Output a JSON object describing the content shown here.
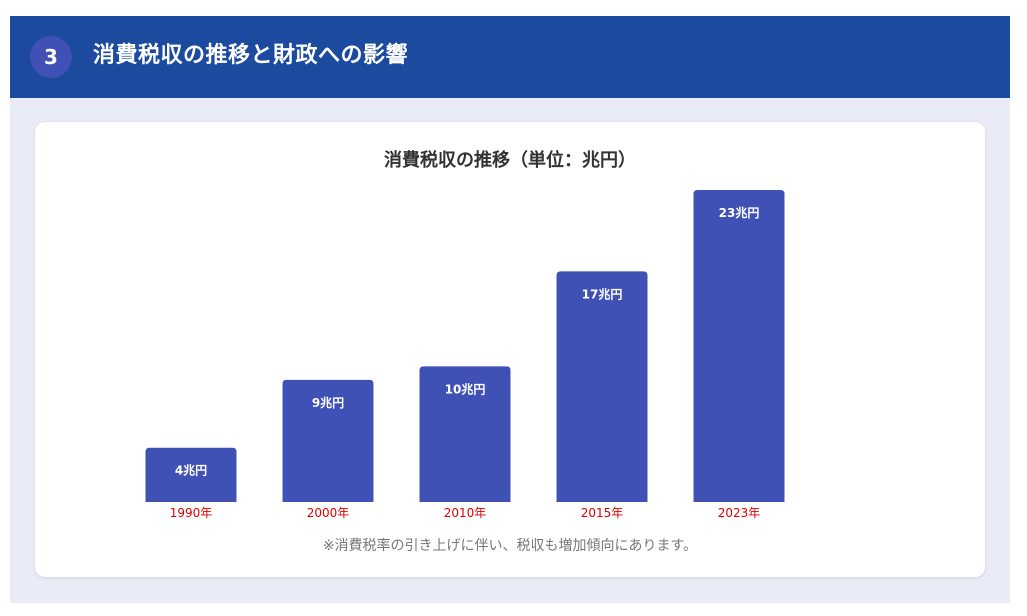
{
  "header": {
    "badge": "3",
    "title": "消費税収の推移と財政への影響"
  },
  "colors": {
    "header_bg": "#1b4a9e",
    "badge_bg": "#3f51b5",
    "bar": "#3f51b5",
    "year_label": "#e00000",
    "note": "#777777"
  },
  "chart_data": {
    "type": "bar",
    "title": "消費税収の推移（単位：兆円）",
    "categories": [
      "1990年",
      "2000年",
      "2010年",
      "2015年",
      "2023年"
    ],
    "values": [
      4,
      9,
      10,
      17,
      23
    ],
    "value_labels": [
      "4兆円",
      "9兆円",
      "10兆円",
      "17兆円",
      "23兆円"
    ],
    "xlabel": "",
    "ylabel": "",
    "grid": false,
    "legend": "none"
  },
  "footnote": "※消費税率の引き上げに伴い、税収も増加傾向にあります。"
}
